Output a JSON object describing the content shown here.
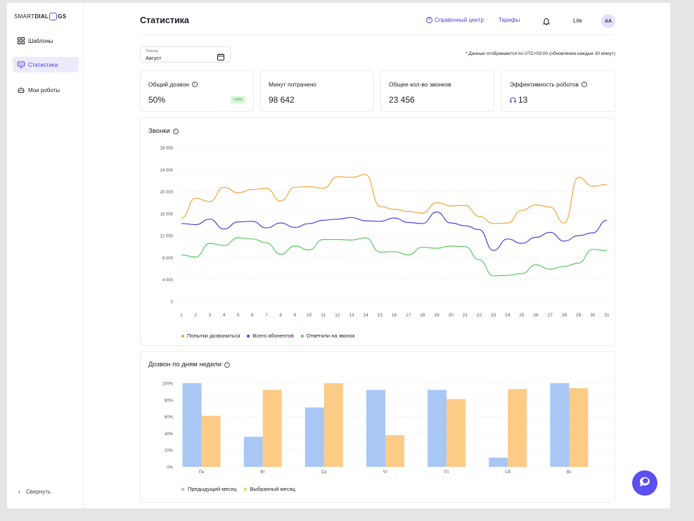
{
  "brand": {
    "prefix": "SMART ",
    "bold1": "DIAL",
    "bold2": "GS"
  },
  "sidebar": {
    "items": [
      {
        "label": "Шаблоны",
        "icon": "grid-icon",
        "active": false
      },
      {
        "label": "Статистика",
        "icon": "monitor-icon",
        "active": true
      },
      {
        "label": "Мои роботы",
        "icon": "robot-icon",
        "active": false
      }
    ],
    "collapse_label": "Свернуть"
  },
  "header": {
    "title": "Статистика",
    "help_label": "Справочный центр",
    "tariffs_label": "Тарифы",
    "plan": "Lite",
    "avatar": "AA"
  },
  "filters": {
    "period_label": "Период",
    "period_value": "Август",
    "timezone_note": "* Данные отображаются по UTC+03:00 (обновление каждые 30 минут)"
  },
  "cards": [
    {
      "title": "Общий дозвон",
      "value": "50%",
      "badge": "+10%",
      "info": true
    },
    {
      "title": "Минут потрачено",
      "value": "98 642"
    },
    {
      "title": "Общее кол-во звонков",
      "value": "23 456"
    },
    {
      "title": "Эффективность роботов",
      "value": "13",
      "info": true,
      "icon": "headset-icon"
    }
  ],
  "colors": {
    "accent": "#5b4ff0",
    "orange": "#f0a53c",
    "purple": "#4b3fe0",
    "green": "#5cc65f",
    "bar_prev": "#a9c7f5",
    "bar_sel": "#fccb86"
  },
  "chart_data": [
    {
      "type": "line",
      "title": "Звонки",
      "x": [
        1,
        2,
        3,
        4,
        5,
        6,
        7,
        8,
        9,
        10,
        11,
        12,
        13,
        14,
        15,
        16,
        17,
        18,
        19,
        20,
        21,
        22,
        23,
        24,
        25,
        26,
        27,
        28,
        29,
        30,
        31
      ],
      "ylim": [
        0,
        28000
      ],
      "yticks": [
        "0",
        "4 000",
        "8 000",
        "12 000",
        "16 000",
        "20 000",
        "24 000",
        "28 000"
      ],
      "grid": true,
      "legend_position": "bottom-left",
      "series": [
        {
          "name": "Попытки дозвониться",
          "color": "#f0a53c",
          "values": [
            15200,
            18800,
            18200,
            20800,
            19800,
            20400,
            20600,
            18300,
            20800,
            20900,
            20600,
            22700,
            22600,
            23100,
            17300,
            16800,
            16400,
            16100,
            18000,
            17400,
            17500,
            15500,
            14200,
            14300,
            16600,
            17600,
            17200,
            14300,
            22600,
            21000,
            21300
          ]
        },
        {
          "name": "Всего абонентов",
          "color": "#4b3fe0",
          "values": [
            14200,
            14000,
            15000,
            13200,
            14500,
            14600,
            13400,
            14300,
            13500,
            14200,
            14800,
            15000,
            15300,
            14700,
            14600,
            15200,
            14400,
            14200,
            16300,
            14300,
            13800,
            13100,
            9300,
            11400,
            10600,
            11700,
            12600,
            11000,
            12000,
            12500,
            14800
          ]
        },
        {
          "name": "Ответили на звонок",
          "color": "#5cc65f",
          "values": [
            8500,
            8100,
            10600,
            10200,
            11600,
            11400,
            10700,
            8600,
            10100,
            9400,
            11300,
            11300,
            11200,
            11600,
            9000,
            9100,
            8500,
            9900,
            9700,
            10100,
            10000,
            7600,
            4700,
            4800,
            5100,
            6700,
            5900,
            6400,
            7000,
            9500,
            9300
          ]
        }
      ]
    },
    {
      "type": "bar",
      "title": "Дозвон по дням недели",
      "categories": [
        "Пн",
        "Вт",
        "Ср",
        "Чт",
        "Пт",
        "Сб",
        "Вс"
      ],
      "ylim": [
        0,
        100
      ],
      "yticks": [
        "0%",
        "20%",
        "40%",
        "60%",
        "80%",
        "100%"
      ],
      "legend_position": "bottom-left",
      "series": [
        {
          "name": "Предыдущий месяц",
          "color": "#a9c7f5",
          "values": [
            100,
            36,
            71,
            92,
            92,
            11,
            100
          ]
        },
        {
          "name": "Выбранный месяц",
          "color": "#fccb86",
          "values": [
            61,
            92,
            100,
            38,
            81,
            93,
            94
          ]
        }
      ]
    }
  ]
}
